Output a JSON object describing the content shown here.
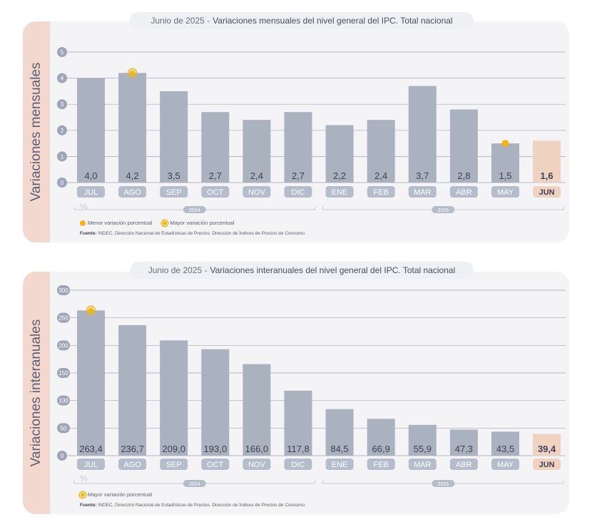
{
  "charts": [
    {
      "title_prefix": "Junio de 2025 - ",
      "title_main": "Variaciones mensuales del nivel general del IPC. Total nacional",
      "ylabel": "Variaciones mensuales",
      "unit": "%",
      "legend": [
        "Menor variación porcentual",
        "Mayor variación porcentual"
      ],
      "source_label": "Fuente:",
      "source_text": "INDEC, Dirección Nacional de Estadísticas de Precios. Dirección de Índices de Precios de Consumo.",
      "year_groups": [
        "2024",
        "2025"
      ]
    },
    {
      "title_prefix": "Junio de 2025 - ",
      "title_main": "Variaciones interanuales del nivel general del IPC. Total nacional",
      "ylabel": "Variaciones interanuales",
      "unit": "%",
      "legend": [
        "Mayor variación porcentual"
      ],
      "source_label": "Fuente:",
      "source_text": "INDEC, Dirección Nacional de Estadísticas de Precios. Dirección de Índices de Precios de Consumo.",
      "year_groups": [
        "2024",
        "2025"
      ]
    }
  ],
  "colors": {
    "bar": "#a9b2be",
    "bar_highlight": "#f0d2c1",
    "category_pill": "#b5bccb",
    "axis_badge": "#9ea5b6",
    "marker": "#f5b314",
    "grid": "#a3a7b4",
    "value_text": "#3f4158"
  },
  "chart_data": [
    {
      "type": "bar",
      "categories": [
        "JUL",
        "AGO",
        "SEP",
        "OCT",
        "NOV",
        "DIC",
        "ENE",
        "FEB",
        "MAR",
        "ABR",
        "MAY",
        "JUN"
      ],
      "values": [
        4.0,
        4.2,
        3.5,
        2.7,
        2.4,
        2.7,
        2.2,
        2.4,
        3.7,
        2.8,
        1.5,
        1.6
      ],
      "value_labels": [
        "4,0",
        "4,2",
        "3,5",
        "2,7",
        "2,4",
        "2,7",
        "2,2",
        "2,4",
        "3,7",
        "2,8",
        "1,5",
        "1,6"
      ],
      "title": "Variaciones mensuales del nivel general del IPC. Total nacional",
      "ylabel": "Variaciones mensuales",
      "ylim": [
        0,
        5
      ],
      "yticks": [
        0,
        1,
        2,
        3,
        4,
        5
      ],
      "highlight_index": 11,
      "markers": [
        {
          "index": 1,
          "kind": "ring",
          "meaning": "Mayor variación porcentual"
        },
        {
          "index": 10,
          "kind": "solid",
          "meaning": "Menor variación porcentual"
        }
      ],
      "year_spans": [
        {
          "label": "2024",
          "from": 0,
          "to": 5
        },
        {
          "label": "2025",
          "from": 6,
          "to": 11
        }
      ],
      "grid": true
    },
    {
      "type": "bar",
      "categories": [
        "JUL",
        "AGO",
        "SEP",
        "OCT",
        "NOV",
        "DIC",
        "ENE",
        "FEB",
        "MAR",
        "ABR",
        "MAY",
        "JUN"
      ],
      "values": [
        263.4,
        236.7,
        209.0,
        193.0,
        166.0,
        117.8,
        84.5,
        66.9,
        55.9,
        47.3,
        43.5,
        39.4
      ],
      "value_labels": [
        "263,4",
        "236,7",
        "209,0",
        "193,0",
        "166,0",
        "117,8",
        "84,5",
        "66,9",
        "55,9",
        "47,3",
        "43,5",
        "39,4"
      ],
      "title": "Variaciones interanuales del nivel general del IPC. Total nacional",
      "ylabel": "Variaciones interanuales",
      "ylim": [
        0,
        300
      ],
      "yticks": [
        0,
        50,
        100,
        150,
        200,
        250,
        300
      ],
      "highlight_index": 11,
      "markers": [
        {
          "index": 0,
          "kind": "ring",
          "meaning": "Mayor variación porcentual"
        }
      ],
      "year_spans": [
        {
          "label": "2024",
          "from": 0,
          "to": 5
        },
        {
          "label": "2025",
          "from": 6,
          "to": 11
        }
      ],
      "grid": true
    }
  ]
}
